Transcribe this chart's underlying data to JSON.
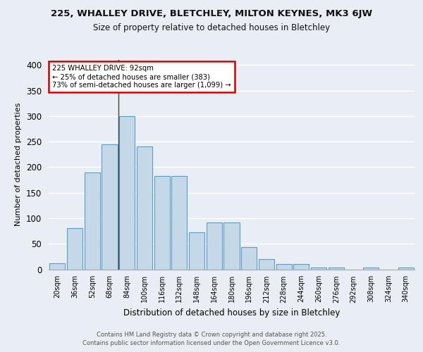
{
  "title_line1": "225, WHALLEY DRIVE, BLETCHLEY, MILTON KEYNES, MK3 6JW",
  "title_line2": "Size of property relative to detached houses in Bletchley",
  "xlabel": "Distribution of detached houses by size in Bletchley",
  "ylabel": "Number of detached properties",
  "bar_labels": [
    "20sqm",
    "36sqm",
    "52sqm",
    "68sqm",
    "84sqm",
    "100sqm",
    "116sqm",
    "132sqm",
    "148sqm",
    "164sqm",
    "180sqm",
    "196sqm",
    "212sqm",
    "228sqm",
    "244sqm",
    "260sqm",
    "276sqm",
    "292sqm",
    "308sqm",
    "324sqm",
    "340sqm"
  ],
  "bar_values": [
    12,
    80,
    190,
    245,
    300,
    240,
    183,
    183,
    73,
    92,
    92,
    44,
    20,
    10,
    10,
    3,
    3,
    0,
    3,
    0,
    3
  ],
  "bar_color": "#c5d8e8",
  "bar_edge_color": "#5a9dc5",
  "annotation_title": "225 WHALLEY DRIVE: 92sqm",
  "annotation_line2": "← 25% of detached houses are smaller (383)",
  "annotation_line3": "73% of semi-detached houses are larger (1,099) →",
  "annotation_box_edge": "#cc0000",
  "vline_x_index": 4,
  "ylim": [
    0,
    410
  ],
  "yticks": [
    0,
    50,
    100,
    150,
    200,
    250,
    300,
    350,
    400
  ],
  "footer_line1": "Contains HM Land Registry data © Crown copyright and database right 2025.",
  "footer_line2": "Contains public sector information licensed under the Open Government Licence v3.0.",
  "bg_color": "#e8eef4",
  "plot_bg_color": "#e8eef4"
}
